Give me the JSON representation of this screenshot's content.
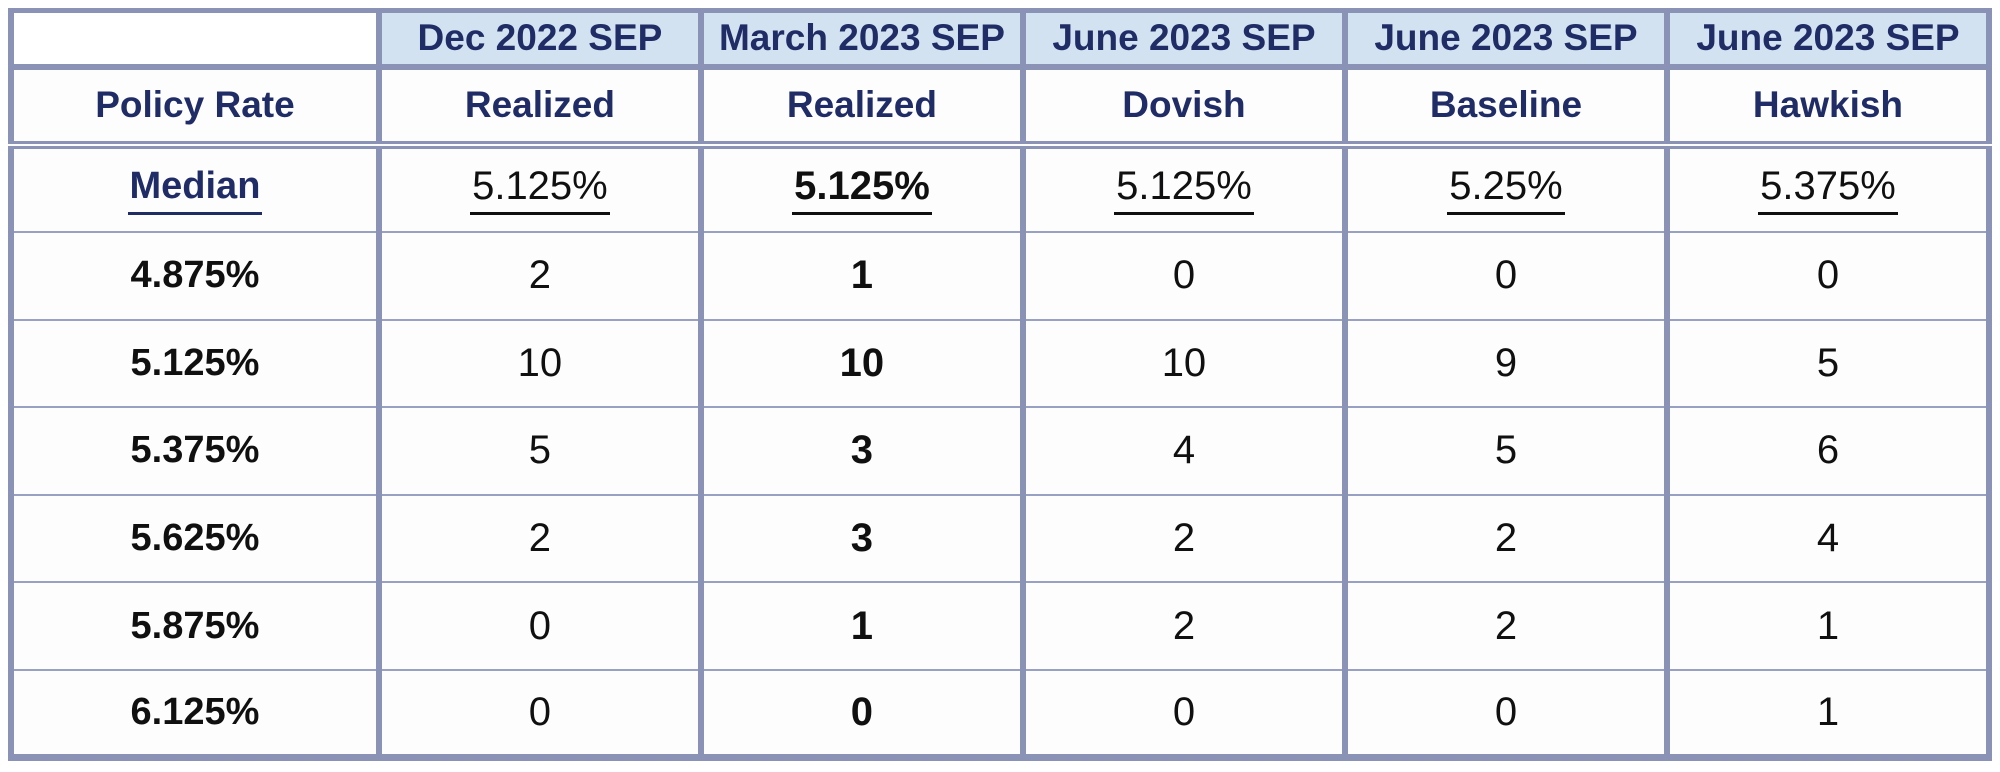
{
  "colors": {
    "grid_border": "#8a93b5",
    "period_header_bg": "#d3e2f0",
    "header_text": "#1f2c66",
    "data_text": "#101010"
  },
  "chart_data": {
    "type": "table",
    "header_row_1": [
      "",
      "Dec 2022 SEP",
      "March 2023 SEP",
      "June 2023 SEP",
      "June 2023 SEP",
      "June 2023 SEP"
    ],
    "header_row_2": [
      "Policy Rate",
      "Realized",
      "Realized",
      "Dovish",
      "Baseline",
      "Hawkish"
    ],
    "median_row": {
      "label": "Median",
      "values": [
        "5.125%",
        "5.125%",
        "5.125%",
        "5.25%",
        "5.375%"
      ]
    },
    "rate_rows": [
      {
        "label": "4.875%",
        "values": [
          "2",
          "1",
          "0",
          "0",
          "0"
        ]
      },
      {
        "label": "5.125%",
        "values": [
          "10",
          "10",
          "10",
          "9",
          "5"
        ]
      },
      {
        "label": "5.375%",
        "values": [
          "5",
          "3",
          "4",
          "5",
          "6"
        ]
      },
      {
        "label": "5.625%",
        "values": [
          "2",
          "3",
          "2",
          "2",
          "4"
        ]
      },
      {
        "label": "5.875%",
        "values": [
          "0",
          "1",
          "2",
          "2",
          "1"
        ]
      },
      {
        "label": "6.125%",
        "values": [
          "0",
          "0",
          "0",
          "0",
          "1"
        ]
      }
    ],
    "layout_hints": {
      "bold_column": "March 2023 SEP (Realized)",
      "underlined_cells": "Median row labels and values",
      "grid": "thick vertical borders, thin horizontal separators, double rule under scenario header row"
    }
  }
}
